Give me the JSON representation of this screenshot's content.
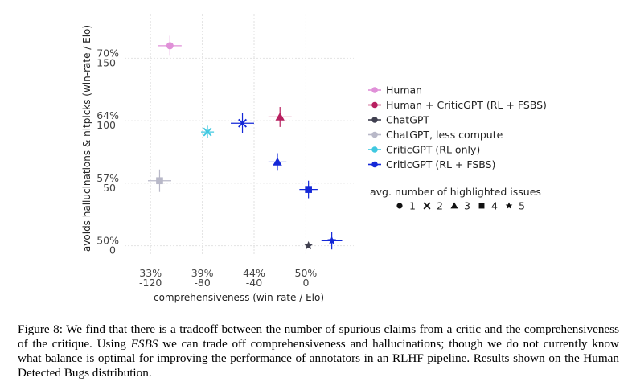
{
  "chart_data": {
    "type": "scatter",
    "xlabel": "comprehensiveness (win-rate / Elo)",
    "ylabel": "avoids hallucinations & nitpicks (win-rate / Elo)",
    "x_ticks": [
      {
        "value": -120,
        "pct": "33%",
        "elo": "-120"
      },
      {
        "value": -80,
        "pct": "39%",
        "elo": "-80"
      },
      {
        "value": -40,
        "pct": "44%",
        "elo": "-40"
      },
      {
        "value": 0,
        "pct": "50%",
        "elo": "0"
      }
    ],
    "y_ticks": [
      {
        "value": 0,
        "pct": "50%",
        "elo": "0"
      },
      {
        "value": 50,
        "pct": "57%",
        "elo": "50"
      },
      {
        "value": 100,
        "pct": "64%",
        "elo": "100"
      },
      {
        "value": 150,
        "pct": "70%",
        "elo": "150"
      }
    ],
    "xlim": [
      -140,
      37
    ],
    "ylim": [
      -8,
      185
    ],
    "grid": true,
    "legend_position": "right",
    "series": [
      {
        "name": "Human",
        "color": "#e090d8",
        "points": [
          {
            "x": -105,
            "y": 160,
            "marker": "circle",
            "xerr": 9,
            "yerr": 8
          }
        ]
      },
      {
        "name": "Human + CriticGPT (RL + FSBS)",
        "color": "#b82060",
        "points": [
          {
            "x": -20,
            "y": 103,
            "marker": "triangle",
            "xerr": 9,
            "yerr": 8
          }
        ]
      },
      {
        "name": "ChatGPT",
        "color": "#404050",
        "points": [
          {
            "x": 2,
            "y": 0,
            "marker": "star",
            "xerr": 0,
            "yerr": 0
          }
        ]
      },
      {
        "name": "ChatGPT, less compute",
        "color": "#b8b8c8",
        "points": [
          {
            "x": -113,
            "y": 52,
            "marker": "square",
            "xerr": 9,
            "yerr": 9
          }
        ]
      },
      {
        "name": "CriticGPT (RL only)",
        "color": "#40c8e0",
        "points": [
          {
            "x": -76,
            "y": 91,
            "marker": "x",
            "xerr": 5,
            "yerr": 5
          }
        ]
      },
      {
        "name": "CriticGPT (RL + FSBS)",
        "color": "#1428d8",
        "points": [
          {
            "x": -49,
            "y": 98,
            "marker": "x",
            "xerr": 9,
            "yerr": 8
          },
          {
            "x": -22,
            "y": 67,
            "marker": "triangle",
            "xerr": 7,
            "yerr": 7
          },
          {
            "x": 2,
            "y": 45,
            "marker": "square",
            "xerr": 7,
            "yerr": 7
          },
          {
            "x": 20,
            "y": 4,
            "marker": "star",
            "xerr": 8,
            "yerr": 7
          }
        ]
      }
    ],
    "marker_legend": {
      "title": "avg. number of highlighted issues",
      "items": [
        {
          "marker": "circle",
          "label": "1"
        },
        {
          "marker": "x",
          "label": "2"
        },
        {
          "marker": "triangle",
          "label": "3"
        },
        {
          "marker": "square",
          "label": "4"
        },
        {
          "marker": "star",
          "label": "5"
        }
      ]
    }
  },
  "caption": {
    "prefix": "Figure 8: We find that there is a tradeoff between the number of spurious claims from a critic and the comprehensiveness of the critique. Using ",
    "emphasis": "FSBS",
    "suffix": " we can trade off comprehensiveness and hallucinations; though we do not currently know what balance is optimal for improving the performance of annotators in an RLHF pipeline. Results shown on the Human Detected Bugs distribution."
  }
}
